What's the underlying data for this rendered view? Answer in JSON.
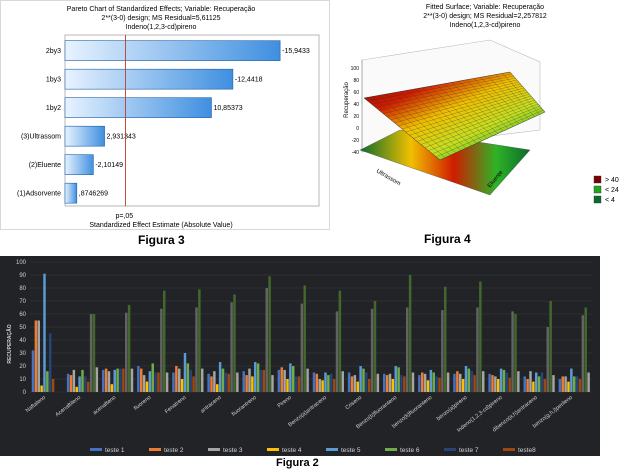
{
  "captions": {
    "fig3": "Figura 3",
    "fig4": "Figura 4",
    "fig2": "Figura 2"
  },
  "chart_data": [
    {
      "type": "bar",
      "orientation": "horizontal",
      "title": "Pareto Chart of Standardized Effects; Variable: Recuperação",
      "subtitle1": "2**(3-0) design; MS Residual=5,61125",
      "subtitle2": "Indeno(1,2,3-cd)pireno",
      "xlabel": "Standardized Effect Estimate (Absolute Value)",
      "categories": [
        "2by3",
        "1by3",
        "1by2",
        "(3)Ultrassom",
        "(2)Eluente",
        "(1)Adsorvente"
      ],
      "values": [
        -15.9433,
        -12.4418,
        10.85373,
        2.931343,
        -2.10149,
        0.8746269
      ],
      "labels": [
        "-15,9433",
        "-12,4418",
        "10,85373",
        "2,931343",
        "-2,10149",
        ",8746269"
      ],
      "reference_line": {
        "label": "p=,05"
      },
      "bar_color": "#3f8fe0"
    },
    {
      "type": "surface",
      "title": "Fitted Surface; Variable: Recuperação",
      "subtitle1": "2**(3-0) design; MS Residual=2,257812",
      "subtitle2": "Indeno(1,2,3-cd)pireno",
      "zlabel": "Recuperação",
      "xlabel": "Ultrassom",
      "ylabel": "Eluente",
      "z_ticks": [
        "100",
        "80",
        "60",
        "40",
        "20",
        "0",
        "-20",
        "-40"
      ],
      "legend": [
        {
          "label": "> 40",
          "color": "#7a0000"
        },
        {
          "label": "< 24",
          "color": "#22a61d"
        },
        {
          "label": "< 4",
          "color": "#0a6b2d"
        }
      ]
    },
    {
      "type": "bar",
      "orientation": "vertical",
      "ylabel": "RECUPERAÇÃO",
      "ylim": [
        0,
        100
      ],
      "yticks": [
        "0",
        "10",
        "20",
        "30",
        "40",
        "50",
        "60",
        "70",
        "80",
        "90",
        "100"
      ],
      "categories": [
        "Naftaleno",
        "Acenaftileno",
        "acenafteno",
        "fluoreno",
        "Fenatreno",
        "antraceno",
        "fluorantreno",
        "Pireno",
        "Benzo(a)antraceno",
        "Criseno",
        "Benzo(b)fluoranteno",
        "benzo(k)fluoranteno",
        "benzo(a)pireno",
        "Indeno(1,2,3-cd)pireno",
        "dibenzo(a,h)antraceno",
        "benzo(g,h,i)perileno"
      ],
      "series": [
        {
          "name": "teste 1",
          "color": "#4472c4",
          "values": [
            32,
            14,
            17,
            20,
            15,
            14,
            16,
            17,
            15,
            15,
            14,
            13,
            14,
            14,
            12,
            10
          ]
        },
        {
          "name": "teste 2",
          "color": "#ed7d31",
          "values": [
            55,
            13,
            18,
            18,
            20,
            12,
            13,
            19,
            14,
            12,
            13,
            15,
            16,
            13,
            10,
            12
          ]
        },
        {
          "name": "teste 3",
          "color": "#a5a5a5",
          "values": [
            55,
            17,
            16,
            13,
            18,
            16,
            18,
            17,
            10,
            13,
            14,
            14,
            14,
            12,
            16,
            12
          ]
        },
        {
          "name": "teste 4",
          "color": "#ffc000",
          "values": [
            5,
            4,
            6,
            8,
            10,
            6,
            12,
            10,
            9,
            8,
            10,
            9,
            10,
            10,
            8,
            8
          ]
        },
        {
          "name": "teste 5",
          "color": "#5b9bd5",
          "values": [
            91,
            12,
            17,
            16,
            30,
            23,
            23,
            22,
            15,
            20,
            20,
            17,
            20,
            18,
            15,
            18
          ]
        },
        {
          "name": "teste 6",
          "color": "#70ad47",
          "values": [
            16,
            17,
            18,
            22,
            22,
            18,
            22,
            20,
            13,
            18,
            19,
            15,
            18,
            17,
            12,
            12
          ]
        },
        {
          "name": "teste 7",
          "color": "#264478",
          "values": [
            45,
            12,
            18,
            15,
            17,
            15,
            17,
            12,
            14,
            15,
            13,
            12,
            16,
            15,
            15,
            12
          ]
        },
        {
          "name": "teste8",
          "color": "#9e480e",
          "values": [
            10,
            8,
            18,
            15,
            12,
            14,
            17,
            12,
            10,
            10,
            12,
            11,
            13,
            11,
            10,
            10
          ]
        },
        {
          "name": "",
          "color": "#636363",
          "values": [
            0,
            60,
            61,
            64,
            65,
            69,
            80,
            68,
            62,
            64,
            65,
            63,
            65,
            62,
            50,
            59
          ]
        },
        {
          "name": "",
          "color": "#43682b",
          "values": [
            0,
            60,
            67,
            78,
            79,
            75,
            89,
            82,
            78,
            70,
            90,
            81,
            85,
            60,
            70,
            65
          ]
        },
        {
          "name": "",
          "color": "#a5a5a5",
          "values": [
            0,
            19,
            18,
            15,
            18,
            15,
            13,
            18,
            16,
            14,
            15,
            15,
            16,
            16,
            13,
            15
          ]
        }
      ]
    }
  ]
}
